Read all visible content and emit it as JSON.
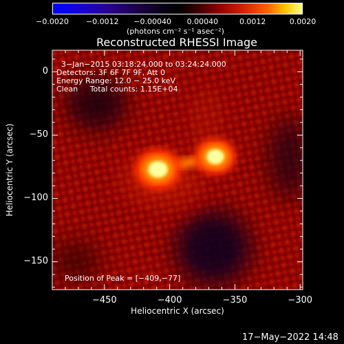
{
  "chart_data": {
    "type": "heatmap",
    "title": "Reconstructed RHESSI Image",
    "xlabel": "Heliocentric X (arcsec)",
    "ylabel": "Heliocentric Y (arcsec)",
    "xlim": [
      -490,
      -298
    ],
    "ylim": [
      -172,
      17
    ],
    "x_ticks": [
      -450,
      -400,
      -350,
      -300
    ],
    "y_ticks": [
      0,
      -50,
      -100,
      -150
    ],
    "x_tick_labels": [
      "−450",
      "−400",
      "−350",
      "−300"
    ],
    "y_tick_labels": [
      "0",
      "−50",
      "−100",
      "−150"
    ],
    "colorbar": {
      "range": [
        -0.002,
        0.002
      ],
      "ticks": [
        -0.002,
        -0.0012,
        -0.0004,
        0.0004,
        0.0012,
        0.002
      ],
      "tick_labels": [
        "−0.0020",
        "−0.0012",
        "−0.00040",
        "0.00040",
        "0.0012",
        "0.0020"
      ],
      "units_label": "(photons cm⁻² s⁻¹ asec⁻²)"
    },
    "annotations": {
      "time_range": "3−Jan−2015 03:18:24.000 to 03:24:24.000",
      "detectors": "Detectors: 3F 6F 7F 9F, Att 0",
      "energy": "Energy Range: 12.0 − 25.0 keV",
      "clean": "Clean     Total counts: 1.15E+04",
      "peak": "Position of Peak = [−409,−77]"
    },
    "sources": [
      {
        "x": -409,
        "y": -77,
        "peak": 0.002
      },
      {
        "x": -365,
        "y": -67,
        "peak": 0.0018
      }
    ],
    "colors": {
      "low": "#0000ff",
      "mid": "#000000",
      "high": "#ffff80"
    }
  },
  "footer_timestamp": "17−May−2022 14:48"
}
